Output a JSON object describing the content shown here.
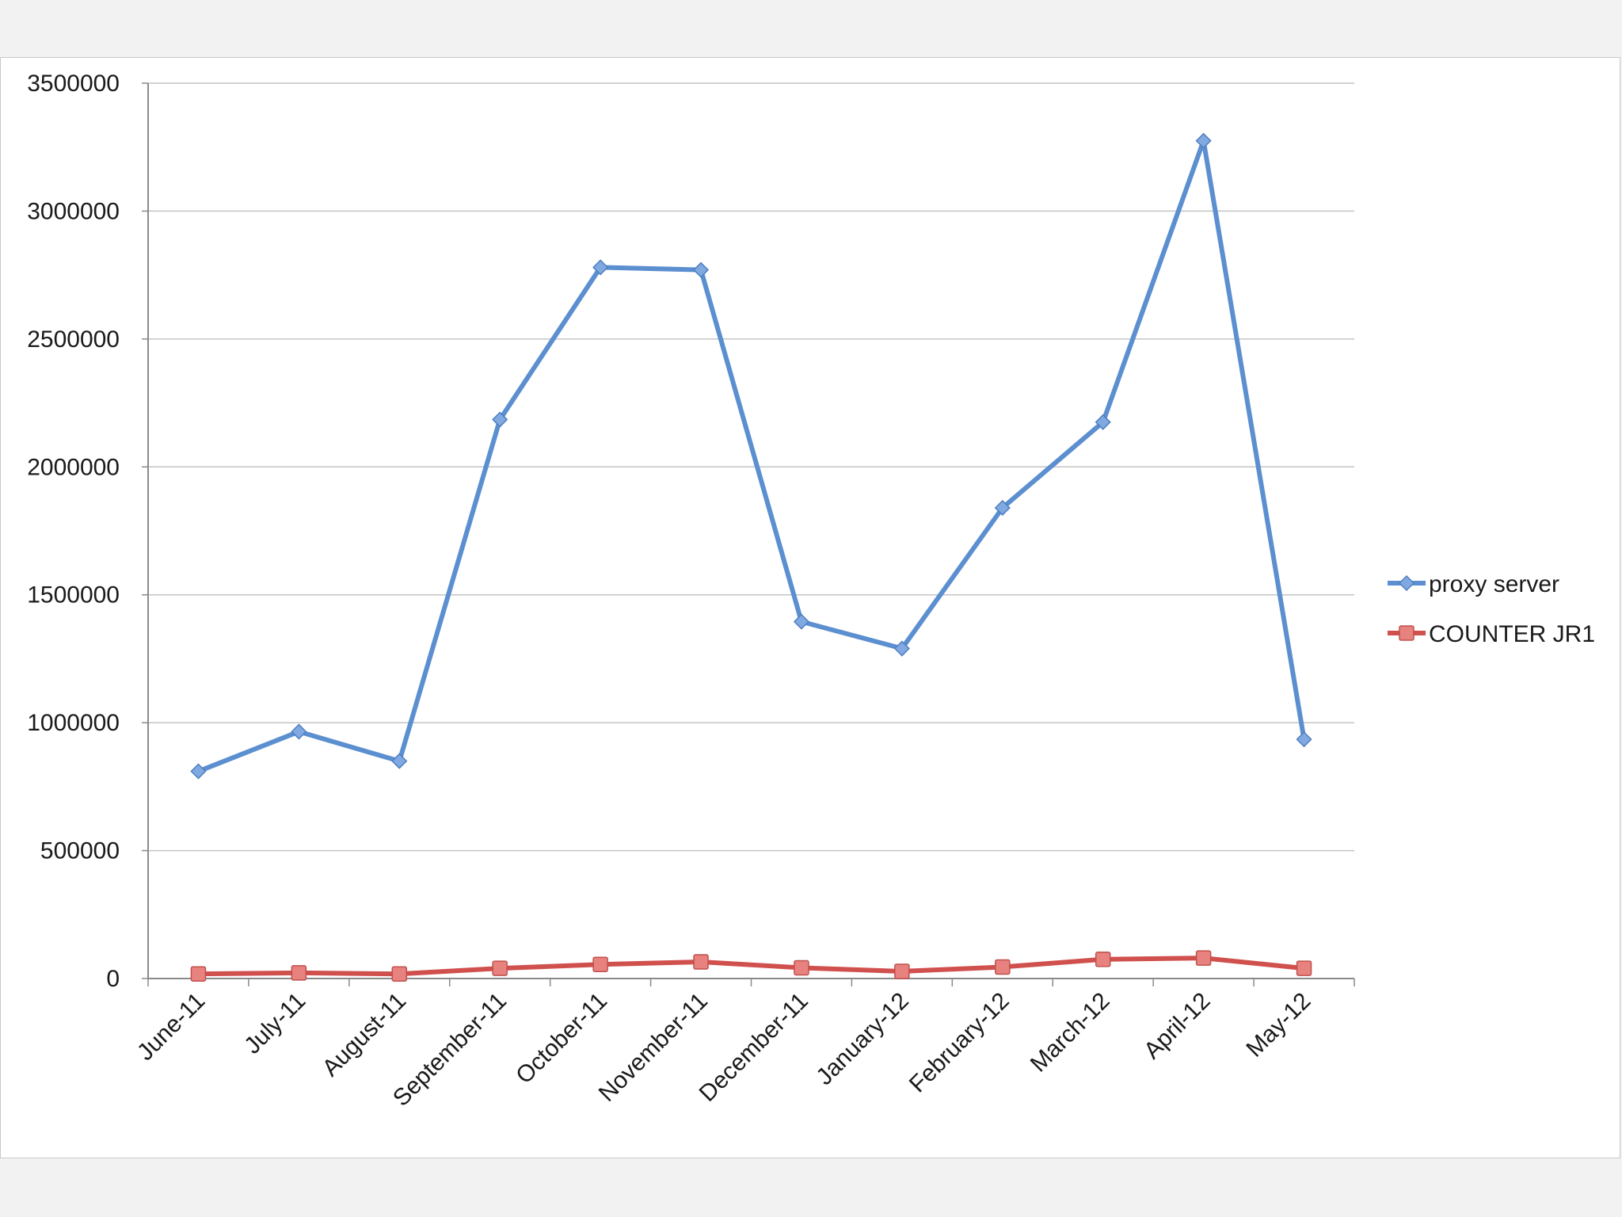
{
  "chart_data": {
    "type": "line",
    "title": "",
    "xlabel": "",
    "ylabel": "",
    "categories": [
      "June-11",
      "July-11",
      "August-11",
      "September-11",
      "October-11",
      "November-11",
      "December-11",
      "January-12",
      "February-12",
      "March-12",
      "April-12",
      "May-12"
    ],
    "ylim": [
      0,
      3500000
    ],
    "yticks": [
      0,
      500000,
      1000000,
      1500000,
      2000000,
      2500000,
      3000000,
      3500000
    ],
    "ytick_labels": [
      "0",
      "500000",
      "1000000",
      "1500000",
      "2000000",
      "2500000",
      "3000000",
      "3500000"
    ],
    "grid": true,
    "legend_position": "right",
    "series": [
      {
        "name": "proxy server",
        "color": "#5b8fd0",
        "marker": "diamond",
        "values": [
          810000,
          965000,
          850000,
          2185000,
          2780000,
          2770000,
          1395000,
          1290000,
          1840000,
          2175000,
          3275000,
          935000
        ]
      },
      {
        "name": "COUNTER JR1",
        "color": "#d0504d",
        "marker": "square",
        "values": [
          18000,
          22000,
          18000,
          40000,
          55000,
          65000,
          42000,
          28000,
          45000,
          75000,
          80000,
          40000
        ]
      }
    ]
  }
}
